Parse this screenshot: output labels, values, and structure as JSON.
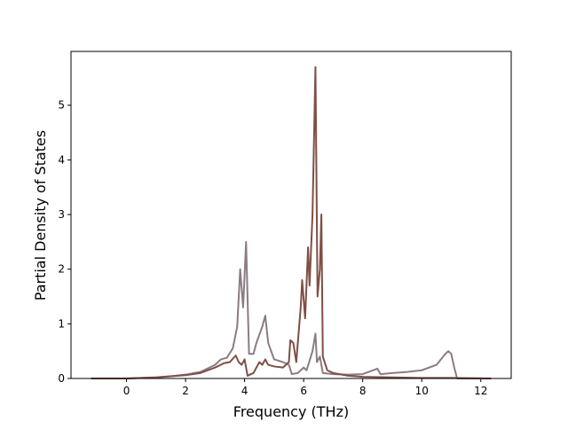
{
  "chart_data": {
    "type": "line",
    "xlabel": "Frequency (THz)",
    "ylabel": "Partial Density of States",
    "xlim": [
      -1.88,
      13.03
    ],
    "ylim": [
      0,
      5.985
    ],
    "xticks": [
      0,
      2,
      4,
      6,
      8,
      10,
      12
    ],
    "yticks": [
      0,
      1,
      2,
      3,
      4,
      5
    ],
    "series": [
      {
        "color": "#8c7b84",
        "x": [
          -1.2,
          0,
          0.5,
          1,
          1.5,
          2,
          2.5,
          3,
          3.2,
          3.4,
          3.6,
          3.75,
          3.85,
          3.95,
          4.05,
          4.15,
          4.3,
          4.4,
          4.6,
          4.7,
          4.8,
          5,
          5.3,
          5.5,
          5.6,
          5.8,
          6.0,
          6.1,
          6.3,
          6.4,
          6.45,
          6.55,
          6.65,
          7,
          7.5,
          8,
          8.5,
          8.6,
          9,
          9.5,
          10,
          10.5,
          10.8,
          10.9,
          11,
          11.1,
          11.2,
          12.35
        ],
        "values": [
          0,
          0,
          0.01,
          0.02,
          0.04,
          0.07,
          0.12,
          0.25,
          0.35,
          0.38,
          0.55,
          0.95,
          2.0,
          1.3,
          2.5,
          0.45,
          0.45,
          0.65,
          0.95,
          1.15,
          0.65,
          0.35,
          0.3,
          0.25,
          0.08,
          0.1,
          0.2,
          0.15,
          0.5,
          0.82,
          0.3,
          0.4,
          0.1,
          0.08,
          0.07,
          0.08,
          0.18,
          0.08,
          0.1,
          0.12,
          0.15,
          0.25,
          0.45,
          0.5,
          0.45,
          0.2,
          0,
          0
        ]
      },
      {
        "color": "#7f4f45",
        "x": [
          -1.2,
          0,
          1,
          2,
          2.5,
          3,
          3.3,
          3.5,
          3.7,
          3.8,
          3.9,
          4.0,
          4.1,
          4.3,
          4.5,
          4.6,
          4.7,
          4.8,
          5,
          5.3,
          5.5,
          5.55,
          5.65,
          5.75,
          5.9,
          5.95,
          6.05,
          6.15,
          6.2,
          6.3,
          6.4,
          6.47,
          6.55,
          6.6,
          6.65,
          6.8,
          7,
          7.5,
          8,
          9,
          10,
          11,
          12.35
        ],
        "values": [
          0,
          0,
          0.02,
          0.06,
          0.1,
          0.2,
          0.28,
          0.3,
          0.42,
          0.3,
          0.25,
          0.35,
          0.05,
          0.1,
          0.3,
          0.25,
          0.35,
          0.25,
          0.22,
          0.2,
          0.3,
          0.7,
          0.65,
          0.3,
          1.3,
          1.8,
          1.1,
          2.4,
          1.7,
          3.0,
          5.7,
          1.5,
          2.0,
          3.0,
          0.4,
          0.15,
          0.1,
          0.05,
          0.03,
          0.02,
          0.01,
          0.01,
          0
        ]
      }
    ]
  }
}
